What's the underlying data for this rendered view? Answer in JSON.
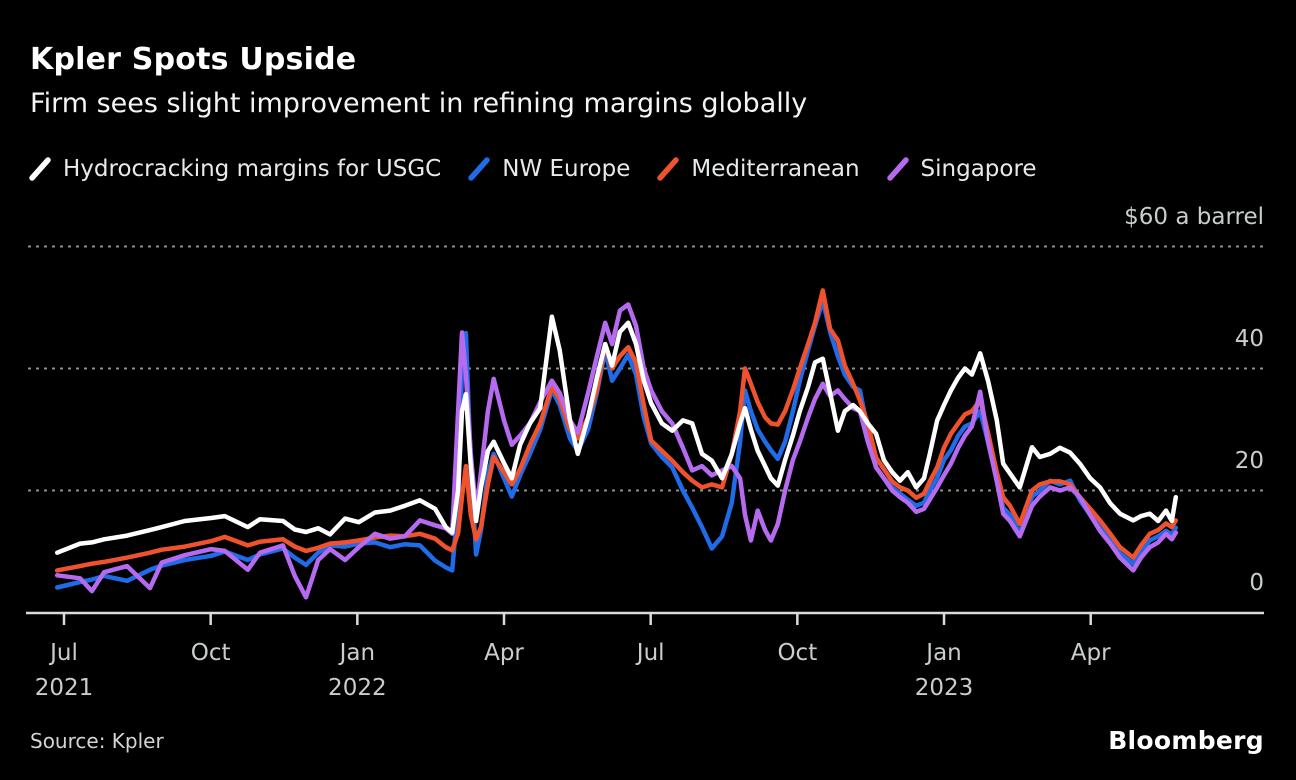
{
  "chart_data": {
    "type": "line",
    "title": "Kpler Spots Upside",
    "subtitle": "Firm sees slight improvement in refining margins globally",
    "source": "Source: Kpler",
    "brand": "Bloomberg",
    "unit_label": "$60 a barrel",
    "background": "#000000",
    "grid": "horizontal dashed",
    "legend_position": "top",
    "ylim": [
      0,
      63
    ],
    "ylabel": "$ a barrel",
    "y_ticks": [
      {
        "value": 60,
        "label": "$60 a barrel"
      },
      {
        "value": 40,
        "label": "40"
      },
      {
        "value": 20,
        "label": "20"
      },
      {
        "value": 0,
        "label": "0"
      }
    ],
    "x_unit": "months since Jul 2021",
    "x_ticks": [
      {
        "m": 0,
        "label": "Jul",
        "year": "2021"
      },
      {
        "m": 3,
        "label": "Oct"
      },
      {
        "m": 6,
        "label": "Jan",
        "year": "2022"
      },
      {
        "m": 9,
        "label": "Apr"
      },
      {
        "m": 12,
        "label": "Jul"
      },
      {
        "m": 15,
        "label": "Oct"
      },
      {
        "m": 18,
        "label": "Jan",
        "year": "2023"
      },
      {
        "m": 21,
        "label": "Apr"
      }
    ],
    "x_months": [
      -0.14,
      0.33,
      0.57,
      0.82,
      1.29,
      1.76,
      2.0,
      2.47,
      3.01,
      3.29,
      3.76,
      4.01,
      4.48,
      4.72,
      4.95,
      5.2,
      5.44,
      5.75,
      6.03,
      6.36,
      6.67,
      6.97,
      7.28,
      7.59,
      7.81,
      7.94,
      8.06,
      8.14,
      8.22,
      8.32,
      8.43,
      8.53,
      8.67,
      8.79,
      9.0,
      9.16,
      9.33,
      9.53,
      9.74,
      9.98,
      10.14,
      10.35,
      10.51,
      10.72,
      10.9,
      11.07,
      11.21,
      11.37,
      11.54,
      11.7,
      11.86,
      12.01,
      12.23,
      12.44,
      12.66,
      12.85,
      13.05,
      13.25,
      13.46,
      13.66,
      13.83,
      13.93,
      14.05,
      14.19,
      14.34,
      14.46,
      14.6,
      14.75,
      14.91,
      15.05,
      15.22,
      15.36,
      15.52,
      15.67,
      15.83,
      15.97,
      16.14,
      16.28,
      16.44,
      16.61,
      16.77,
      16.94,
      17.1,
      17.26,
      17.43,
      17.59,
      17.71,
      17.86,
      18.0,
      18.14,
      18.29,
      18.43,
      18.57,
      18.74,
      18.9,
      19.08,
      19.21,
      19.35,
      19.55,
      19.8,
      19.96,
      20.17,
      20.37,
      20.58,
      20.78,
      20.99,
      21.19,
      21.4,
      21.6,
      21.87,
      22.03,
      22.21,
      22.38,
      22.54,
      22.66,
      22.74
    ],
    "series": [
      {
        "name": "Hydrocracking margins for USGC",
        "color": "#FFFFFF",
        "values": [
          9.8,
          11.3,
          11.5,
          12.0,
          12.6,
          13.5,
          14.0,
          15.0,
          15.5,
          15.8,
          14.0,
          15.3,
          15.0,
          13.6,
          13.2,
          13.8,
          12.8,
          15.4,
          14.8,
          16.4,
          16.7,
          17.5,
          18.4,
          17.0,
          14.0,
          13.1,
          20.0,
          33.0,
          35.8,
          24.0,
          15.0,
          20.5,
          26.5,
          28.0,
          24.5,
          22.0,
          27.5,
          31.0,
          33.5,
          48.5,
          43.0,
          31.5,
          26.0,
          32.0,
          38.5,
          44.0,
          40.5,
          46.0,
          47.5,
          44.0,
          38.0,
          34.3,
          31.0,
          29.8,
          31.5,
          31.0,
          26.0,
          24.9,
          22.0,
          26.0,
          31.0,
          33.5,
          30.0,
          26.5,
          24.0,
          22.0,
          20.8,
          25.0,
          29.0,
          33.0,
          37.0,
          41.0,
          41.6,
          36.0,
          29.8,
          33.0,
          34.0,
          33.0,
          31.0,
          29.3,
          25.0,
          23.0,
          21.6,
          23.0,
          20.5,
          22.0,
          26.0,
          31.5,
          34.0,
          36.4,
          38.5,
          40.0,
          39.0,
          42.5,
          38.0,
          31.5,
          24.4,
          22.8,
          20.5,
          27.1,
          25.5,
          26.0,
          27.0,
          26.2,
          24.4,
          22.0,
          20.5,
          17.9,
          16.2,
          15.1,
          15.8,
          16.2,
          15.0,
          16.7,
          15.0,
          18.9
        ]
      },
      {
        "name": "NW Europe",
        "color": "#1F6BE8",
        "values": [
          4.1,
          5.0,
          5.4,
          6.0,
          5.2,
          7.0,
          7.7,
          8.6,
          9.3,
          10.0,
          8.6,
          9.5,
          10.5,
          9.0,
          7.8,
          9.8,
          11.0,
          10.8,
          11.3,
          11.5,
          10.7,
          11.2,
          11.0,
          8.5,
          7.4,
          6.9,
          18.0,
          40.0,
          45.8,
          24.0,
          9.5,
          13.5,
          22.8,
          26.0,
          22.0,
          19.0,
          22.5,
          26.0,
          30.0,
          36.5,
          34.0,
          28.5,
          26.5,
          30.0,
          36.0,
          43.0,
          38.0,
          40.0,
          42.3,
          39.0,
          32.0,
          27.7,
          25.5,
          23.8,
          20.0,
          17.2,
          14.0,
          10.5,
          12.5,
          18.0,
          28.0,
          36.4,
          33.0,
          30.0,
          28.0,
          26.6,
          25.2,
          28.0,
          33.0,
          38.0,
          43.0,
          47.0,
          51.1,
          46.0,
          42.0,
          39.0,
          37.0,
          36.4,
          30.0,
          23.8,
          22.0,
          20.5,
          19.5,
          18.5,
          17.5,
          18.0,
          20.0,
          22.1,
          25.0,
          26.6,
          29.0,
          30.5,
          31.0,
          33.0,
          28.0,
          22.0,
          17.2,
          16.0,
          13.0,
          19.0,
          20.0,
          21.6,
          21.0,
          21.6,
          18.4,
          16.0,
          13.9,
          11.8,
          9.7,
          8.0,
          10.0,
          11.8,
          12.5,
          13.4,
          12.8,
          13.9
        ]
      },
      {
        "name": "Mediterranean",
        "color": "#F0522D",
        "values": [
          6.9,
          7.6,
          8.0,
          8.3,
          9.0,
          9.8,
          10.3,
          10.8,
          11.7,
          12.4,
          11.0,
          11.6,
          12.0,
          10.8,
          10.1,
          10.6,
          11.3,
          11.5,
          11.8,
          12.3,
          12.6,
          12.5,
          12.9,
          12.1,
          10.7,
          10.2,
          13.0,
          19.0,
          24.0,
          16.0,
          12.0,
          14.0,
          21.0,
          25.5,
          23.0,
          21.0,
          23.5,
          27.5,
          31.0,
          37.0,
          35.0,
          30.0,
          28.5,
          32.0,
          36.5,
          44.0,
          40.0,
          42.0,
          43.5,
          41.0,
          34.0,
          28.2,
          26.5,
          24.9,
          23.0,
          21.6,
          20.5,
          21.0,
          20.5,
          26.0,
          33.0,
          40.0,
          37.5,
          34.5,
          32.0,
          31.0,
          30.8,
          33.0,
          36.5,
          40.0,
          44.0,
          47.5,
          52.8,
          46.5,
          44.6,
          40.5,
          37.5,
          34.8,
          31.0,
          25.4,
          23.5,
          21.5,
          20.5,
          20.0,
          18.8,
          19.5,
          21.5,
          23.8,
          27.0,
          29.3,
          31.0,
          32.5,
          33.0,
          34.8,
          29.5,
          23.0,
          18.9,
          17.5,
          14.5,
          20.0,
          21.0,
          21.5,
          21.5,
          21.0,
          18.9,
          17.0,
          15.1,
          12.9,
          10.7,
          9.0,
          11.0,
          12.9,
          13.5,
          14.6,
          14.0,
          15.1
        ]
      },
      {
        "name": "Singapore",
        "color": "#B56AF0",
        "values": [
          6.1,
          5.6,
          3.5,
          6.6,
          7.6,
          4.0,
          8.2,
          9.4,
          10.4,
          10.1,
          7.0,
          9.8,
          11.0,
          6.0,
          2.5,
          8.6,
          10.4,
          8.6,
          10.7,
          12.9,
          12.1,
          12.5,
          15.1,
          14.3,
          13.8,
          12.9,
          33.0,
          45.9,
          39.0,
          26.0,
          16.5,
          23.0,
          33.0,
          38.3,
          31.5,
          27.5,
          29.0,
          31.0,
          34.5,
          38.0,
          36.0,
          31.5,
          29.5,
          36.0,
          42.0,
          47.5,
          44.0,
          49.5,
          50.5,
          47.0,
          40.0,
          36.4,
          33.0,
          31.0,
          27.0,
          23.3,
          24.0,
          22.5,
          23.3,
          24.0,
          22.0,
          16.0,
          11.8,
          16.7,
          13.5,
          11.8,
          14.5,
          20.0,
          25.0,
          28.0,
          32.0,
          35.0,
          37.5,
          35.5,
          36.4,
          35.0,
          33.5,
          33.0,
          28.0,
          23.8,
          22.0,
          20.0,
          18.9,
          18.0,
          16.5,
          17.0,
          18.5,
          20.5,
          22.5,
          24.4,
          27.0,
          29.0,
          30.5,
          36.2,
          28.0,
          21.5,
          16.2,
          15.0,
          12.5,
          17.5,
          19.0,
          20.5,
          20.0,
          20.5,
          18.9,
          16.0,
          13.4,
          11.3,
          9.0,
          6.9,
          9.0,
          10.7,
          11.5,
          12.9,
          12.0,
          13.1
        ]
      }
    ]
  }
}
